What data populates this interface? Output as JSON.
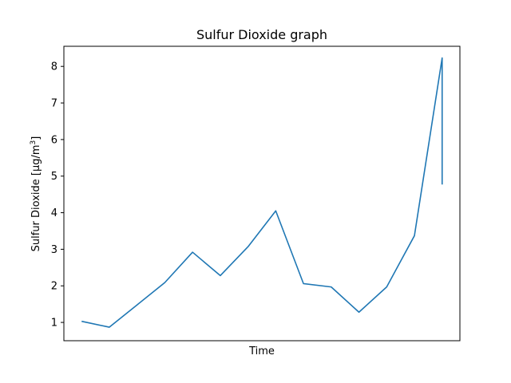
{
  "chart_data": {
    "type": "line",
    "title": "Sulfur Dioxide graph",
    "xlabel": "Time",
    "ylabel": "Sulfur Dioxide [µg/m³]",
    "ylabel_base": "Sulfur Dioxide [µg/m",
    "ylabel_sup": "3",
    "ylabel_end": "]",
    "ylim": [
      0.5,
      8.55
    ],
    "yticks": [
      1,
      2,
      3,
      4,
      5,
      6,
      7,
      8
    ],
    "ytick_labels": [
      "1",
      "2",
      "3",
      "4",
      "5",
      "6",
      "7",
      "8"
    ],
    "x_ticks_visible": false,
    "grid": false,
    "series": [
      {
        "color": "#1f77b4",
        "x": [
          0,
          1,
          2,
          3,
          4,
          5,
          6,
          7,
          8,
          9,
          10,
          11,
          12,
          13,
          13
        ],
        "y": [
          1.03,
          0.87,
          1.48,
          2.09,
          2.92,
          2.28,
          3.07,
          4.05,
          2.06,
          1.97,
          1.28,
          1.97,
          3.37,
          8.23,
          4.77
        ]
      }
    ],
    "xlim": [
      -0.64,
      13.64
    ]
  }
}
